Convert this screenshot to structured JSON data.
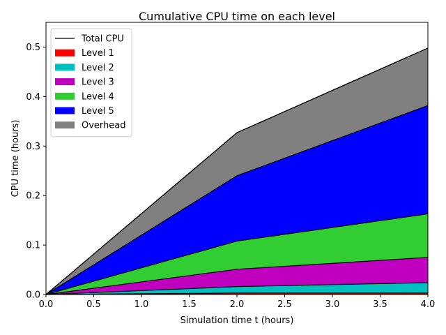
{
  "chart_data": {
    "type": "area",
    "title": "Cumulative CPU time on each level",
    "xlabel": "Simulation time t (hours)",
    "ylabel": "CPU time (hours)",
    "x": [
      0.0,
      2.0,
      4.0
    ],
    "xlim": [
      0.0,
      4.0
    ],
    "ylim": [
      0.0,
      0.55
    ],
    "xticks": [
      "0.0",
      "0.5",
      "1.0",
      "1.5",
      "2.0",
      "2.5",
      "3.0",
      "3.5",
      "4.0"
    ],
    "yticks": [
      "0.0",
      "0.1",
      "0.2",
      "0.3",
      "0.4",
      "0.5"
    ],
    "stacked": true,
    "grid": false,
    "legend_position": "top-left",
    "series": [
      {
        "name": "Level 1",
        "color": "#ff0000",
        "values": [
          0.0,
          0.003,
          0.003
        ]
      },
      {
        "name": "Level 2",
        "color": "#00bfbf",
        "values": [
          0.0,
          0.013,
          0.021
        ]
      },
      {
        "name": "Level 3",
        "color": "#bf00bf",
        "values": [
          0.0,
          0.035,
          0.051
        ]
      },
      {
        "name": "Level 4",
        "color": "#32cd32",
        "values": [
          0.0,
          0.057,
          0.088
        ]
      },
      {
        "name": "Level 5",
        "color": "#0000ff",
        "values": [
          0.0,
          0.132,
          0.219
        ]
      },
      {
        "name": "Overhead",
        "color": "#808080",
        "values": [
          0.0,
          0.087,
          0.116
        ]
      }
    ],
    "total_line": {
      "name": "Total CPU",
      "color": "#000000",
      "values": [
        0.0,
        0.327,
        0.498
      ]
    }
  }
}
